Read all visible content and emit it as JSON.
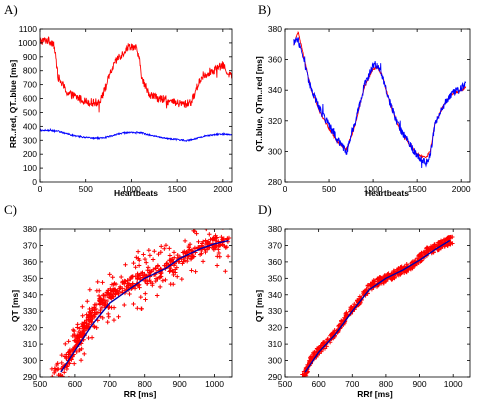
{
  "chart_data": [
    {
      "id": "A",
      "panel_label": "A)",
      "type": "line",
      "xlabel": "Heartbeats",
      "ylabel": "RR..red, QT..blue   [ms]",
      "xlim": [
        0,
        2100
      ],
      "ylim": [
        0,
        1100
      ],
      "xticks": [
        0,
        500,
        1000,
        1500,
        2000
      ],
      "yticks": [
        0,
        100,
        200,
        300,
        400,
        500,
        600,
        700,
        800,
        900,
        1000,
        1100
      ],
      "grid": false,
      "series": [
        {
          "color": "#ff0000",
          "noise": 30,
          "x": [
            0,
            80,
            150,
            200,
            300,
            400,
            500,
            600,
            650,
            700,
            780,
            850,
            900,
            960,
            1000,
            1050,
            1080,
            1120,
            1200,
            1300,
            1400,
            1500,
            1600,
            1660,
            1700,
            1740,
            1780,
            1850,
            1950,
            2000,
            2050,
            2100
          ],
          "y": [
            1010,
            1020,
            1000,
            750,
            640,
            610,
            580,
            570,
            580,
            650,
            800,
            890,
            920,
            970,
            980,
            960,
            900,
            730,
            630,
            600,
            580,
            565,
            560,
            580,
            650,
            720,
            760,
            790,
            820,
            840,
            790,
            760
          ]
        },
        {
          "color": "#0000ff",
          "noise": 5,
          "x": [
            0,
            100,
            200,
            300,
            400,
            500,
            600,
            700,
            800,
            900,
            1000,
            1100,
            1200,
            1300,
            1400,
            1500,
            1600,
            1700,
            1800,
            1900,
            2000,
            2100
          ],
          "y": [
            370,
            372,
            365,
            345,
            330,
            320,
            315,
            318,
            335,
            352,
            358,
            355,
            338,
            322,
            312,
            305,
            298,
            310,
            330,
            340,
            345,
            340
          ]
        }
      ]
    },
    {
      "id": "B",
      "panel_label": "B)",
      "type": "line",
      "xlabel": "Heartbeats",
      "ylabel": "QT..blue, QTm..red   [ms]",
      "xlim": [
        0,
        2100
      ],
      "ylim": [
        280,
        380
      ],
      "xticks": [
        0,
        500,
        1000,
        1500,
        2000
      ],
      "yticks": [
        280,
        300,
        320,
        340,
        360,
        380
      ],
      "grid": false,
      "series": [
        {
          "color": "#ff0000",
          "noise": 0.8,
          "x": [
            100,
            150,
            200,
            300,
            400,
            500,
            600,
            700,
            800,
            900,
            1000,
            1050,
            1100,
            1200,
            1300,
            1400,
            1500,
            1600,
            1650,
            1700,
            1800,
            1900,
            2000,
            2050
          ],
          "y": [
            370,
            378,
            365,
            340,
            325,
            315,
            306,
            301,
            318,
            342,
            354,
            355,
            350,
            330,
            315,
            306,
            298,
            296,
            300,
            318,
            330,
            338,
            340,
            342
          ]
        },
        {
          "color": "#0000ff",
          "noise": 2.6,
          "x": [
            100,
            150,
            200,
            300,
            400,
            500,
            600,
            700,
            800,
            900,
            1000,
            1050,
            1100,
            1200,
            1300,
            1400,
            1500,
            1600,
            1650,
            1700,
            1800,
            1900,
            2000,
            2050
          ],
          "y": [
            372,
            373,
            362,
            340,
            327,
            317,
            307,
            300,
            320,
            343,
            356,
            357,
            350,
            330,
            315,
            306,
            297,
            293,
            297,
            318,
            330,
            338,
            341,
            345
          ]
        }
      ]
    },
    {
      "id": "C",
      "panel_label": "C)",
      "type": "scatter",
      "xlabel": "RR   [ms]",
      "ylabel": "QT   [ms]",
      "xlim": [
        500,
        1050
      ],
      "ylim": [
        290,
        380
      ],
      "xticks": [
        500,
        600,
        700,
        800,
        900,
        1000
      ],
      "yticks": [
        290,
        300,
        310,
        320,
        330,
        340,
        350,
        360,
        370,
        380
      ],
      "grid": false,
      "series": [
        {
          "color": "#ff0000",
          "marker": "plus",
          "noise_x": 28,
          "noise_y": 4,
          "x": [
            560,
            570,
            580,
            590,
            600,
            610,
            620,
            630,
            640,
            650,
            660,
            670,
            680,
            690,
            700,
            720,
            740,
            760,
            780,
            800,
            820,
            840,
            860,
            880,
            900,
            920,
            940,
            960,
            980,
            1000,
            1020,
            1040
          ],
          "y": [
            292,
            296,
            300,
            304,
            308,
            313,
            317,
            320,
            324,
            328,
            331,
            334,
            336,
            338,
            340,
            343,
            345,
            347,
            348,
            350,
            352,
            354,
            356,
            358,
            362,
            364,
            366,
            368,
            370,
            371,
            372,
            373
          ]
        },
        {
          "color": "#0000aa",
          "marker": "line",
          "x": [
            560,
            600,
            650,
            700,
            760,
            800,
            860,
            900,
            960,
            1000,
            1040
          ],
          "y": [
            293,
            306,
            322,
            335,
            344,
            350,
            356,
            362,
            368,
            371,
            373
          ]
        }
      ]
    },
    {
      "id": "D",
      "panel_label": "D)",
      "type": "scatter",
      "xlabel": "RRf   [ms]",
      "ylabel": "QT   [ms]",
      "xlim": [
        500,
        1050
      ],
      "ylim": [
        290,
        380
      ],
      "xticks": [
        500,
        600,
        700,
        800,
        900,
        1000
      ],
      "yticks": [
        290,
        300,
        310,
        320,
        330,
        340,
        350,
        360,
        370,
        380
      ],
      "grid": false,
      "series": [
        {
          "color": "#ff0000",
          "marker": "plus",
          "noise_x": 8,
          "noise_y": 2.5,
          "x": [
            560,
            570,
            580,
            600,
            620,
            640,
            660,
            680,
            700,
            720,
            740,
            760,
            780,
            800,
            820,
            840,
            860,
            880,
            900,
            920,
            940,
            960,
            980,
            990
          ],
          "y": [
            292,
            297,
            302,
            306,
            310,
            314,
            320,
            326,
            332,
            336,
            342,
            346,
            348,
            350,
            352,
            354,
            356,
            358,
            362,
            366,
            368,
            370,
            372,
            373
          ]
        },
        {
          "color": "#0000aa",
          "marker": "line",
          "x": [
            560,
            600,
            650,
            700,
            750,
            800,
            850,
            900,
            950,
            990
          ],
          "y": [
            293,
            305,
            316,
            330,
            343,
            350,
            355,
            361,
            368,
            373
          ]
        }
      ]
    }
  ]
}
